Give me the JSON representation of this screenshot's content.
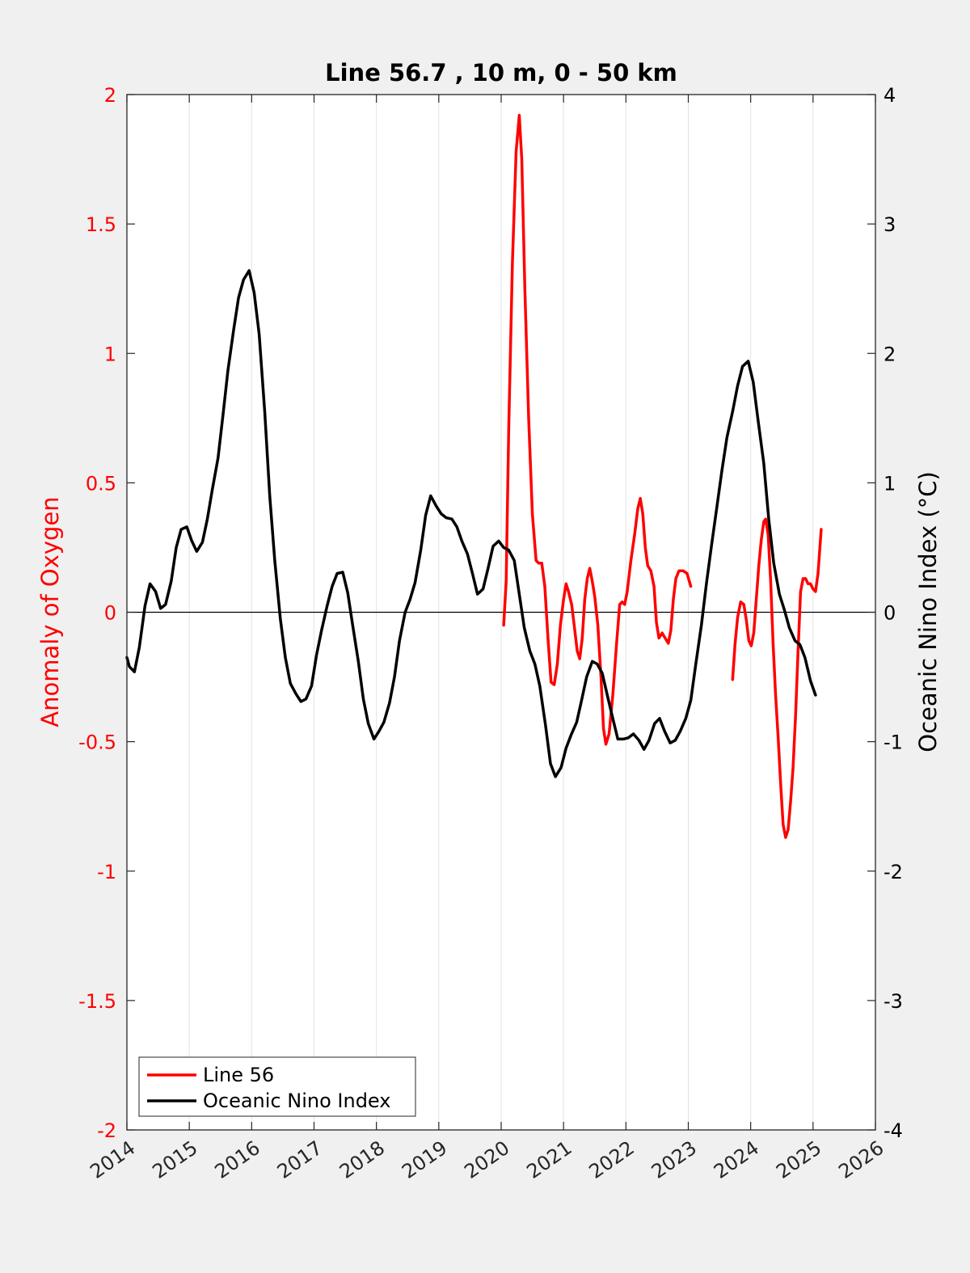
{
  "chart_data": {
    "type": "line",
    "title": "Line 56.7 , 10 m, 0 - 50 km",
    "ylabel_left": "Anomaly of Oxygen",
    "ylabel_right": "Oceanic Nino Index (°C)",
    "xlim": [
      2014,
      2026
    ],
    "ylim_left": [
      -2,
      2
    ],
    "ylim_right": [
      -4,
      4
    ],
    "x_ticks": [
      "2014",
      "2015",
      "2016",
      "2017",
      "2018",
      "2019",
      "2020",
      "2021",
      "2022",
      "2023",
      "2024",
      "2025",
      "2026"
    ],
    "y_ticks_left": [
      "2",
      "1.5",
      "1",
      "0.5",
      "0",
      "-0.5",
      "-1",
      "-1.5",
      "-2"
    ],
    "y_ticks_right": [
      "4",
      "3",
      "2",
      "1",
      "0",
      "-1",
      "-2",
      "-3",
      "-4"
    ],
    "grid": "vertical",
    "legend_position": "bottom-left",
    "series": [
      {
        "name": "Line 56",
        "axis": "left",
        "color": "#ff0000",
        "segments": [
          [
            [
              2020.04,
              -0.05
            ],
            [
              2020.08,
              0.12
            ],
            [
              2020.12,
              0.7
            ],
            [
              2020.18,
              1.35
            ],
            [
              2020.24,
              1.78
            ],
            [
              2020.29,
              1.92
            ],
            [
              2020.33,
              1.75
            ],
            [
              2020.38,
              1.25
            ],
            [
              2020.44,
              0.75
            ],
            [
              2020.5,
              0.38
            ],
            [
              2020.56,
              0.2
            ],
            [
              2020.6,
              0.19
            ],
            [
              2020.65,
              0.19
            ],
            [
              2020.7,
              0.1
            ],
            [
              2020.75,
              -0.1
            ],
            [
              2020.8,
              -0.27
            ],
            [
              2020.85,
              -0.28
            ],
            [
              2020.9,
              -0.2
            ],
            [
              2020.95,
              -0.05
            ],
            [
              2021.0,
              0.05
            ],
            [
              2021.04,
              0.11
            ],
            [
              2021.08,
              0.08
            ],
            [
              2021.13,
              0.03
            ],
            [
              2021.18,
              -0.07
            ],
            [
              2021.22,
              -0.15
            ],
            [
              2021.26,
              -0.18
            ],
            [
              2021.3,
              -0.1
            ],
            [
              2021.34,
              0.05
            ],
            [
              2021.38,
              0.13
            ],
            [
              2021.42,
              0.17
            ],
            [
              2021.46,
              0.12
            ],
            [
              2021.5,
              0.06
            ],
            [
              2021.55,
              -0.05
            ],
            [
              2021.6,
              -0.25
            ],
            [
              2021.64,
              -0.45
            ],
            [
              2021.68,
              -0.51
            ],
            [
              2021.73,
              -0.47
            ],
            [
              2021.79,
              -0.32
            ],
            [
              2021.85,
              -0.12
            ],
            [
              2021.9,
              0.03
            ],
            [
              2021.94,
              0.04
            ],
            [
              2021.98,
              0.03
            ],
            [
              2022.02,
              0.08
            ],
            [
              2022.08,
              0.2
            ],
            [
              2022.14,
              0.3
            ],
            [
              2022.19,
              0.4
            ],
            [
              2022.23,
              0.44
            ],
            [
              2022.27,
              0.38
            ],
            [
              2022.31,
              0.25
            ],
            [
              2022.35,
              0.18
            ],
            [
              2022.4,
              0.16
            ],
            [
              2022.45,
              0.1
            ],
            [
              2022.49,
              -0.04
            ],
            [
              2022.53,
              -0.1
            ],
            [
              2022.58,
              -0.08
            ],
            [
              2022.63,
              -0.1
            ],
            [
              2022.68,
              -0.12
            ],
            [
              2022.72,
              -0.07
            ],
            [
              2022.76,
              0.05
            ],
            [
              2022.8,
              0.13
            ],
            [
              2022.85,
              0.16
            ],
            [
              2022.92,
              0.16
            ],
            [
              2022.98,
              0.15
            ],
            [
              2023.04,
              0.1
            ]
          ],
          [
            [
              2023.71,
              -0.26
            ],
            [
              2023.75,
              -0.12
            ],
            [
              2023.79,
              -0.02
            ],
            [
              2023.84,
              0.04
            ],
            [
              2023.89,
              0.03
            ],
            [
              2023.93,
              -0.03
            ],
            [
              2023.97,
              -0.11
            ],
            [
              2024.01,
              -0.13
            ],
            [
              2024.05,
              -0.08
            ],
            [
              2024.09,
              0.05
            ],
            [
              2024.13,
              0.18
            ],
            [
              2024.17,
              0.28
            ],
            [
              2024.21,
              0.35
            ],
            [
              2024.24,
              0.36
            ],
            [
              2024.28,
              0.3
            ],
            [
              2024.32,
              0.12
            ],
            [
              2024.36,
              -0.12
            ],
            [
              2024.4,
              -0.32
            ],
            [
              2024.44,
              -0.48
            ],
            [
              2024.48,
              -0.66
            ],
            [
              2024.52,
              -0.82
            ],
            [
              2024.56,
              -0.87
            ],
            [
              2024.6,
              -0.84
            ],
            [
              2024.64,
              -0.73
            ],
            [
              2024.68,
              -0.6
            ],
            [
              2024.72,
              -0.4
            ],
            [
              2024.76,
              -0.15
            ],
            [
              2024.8,
              0.08
            ],
            [
              2024.84,
              0.13
            ],
            [
              2024.88,
              0.13
            ],
            [
              2024.92,
              0.11
            ],
            [
              2024.96,
              0.11
            ],
            [
              2025.0,
              0.09
            ],
            [
              2025.04,
              0.08
            ],
            [
              2025.08,
              0.15
            ],
            [
              2025.13,
              0.32
            ]
          ]
        ]
      },
      {
        "name": "Oceanic Nino Index",
        "axis": "right",
        "color": "#000000",
        "segments": [
          [
            [
              2014.0,
              -0.35
            ],
            [
              2014.04,
              -0.42
            ],
            [
              2014.12,
              -0.46
            ],
            [
              2014.2,
              -0.27
            ],
            [
              2014.29,
              0.05
            ],
            [
              2014.37,
              0.22
            ],
            [
              2014.46,
              0.16
            ],
            [
              2014.54,
              0.03
            ],
            [
              2014.62,
              0.06
            ],
            [
              2014.71,
              0.24
            ],
            [
              2014.79,
              0.5
            ],
            [
              2014.87,
              0.64
            ],
            [
              2014.96,
              0.66
            ],
            [
              2015.04,
              0.55
            ],
            [
              2015.12,
              0.47
            ],
            [
              2015.21,
              0.54
            ],
            [
              2015.29,
              0.72
            ],
            [
              2015.37,
              0.95
            ],
            [
              2015.46,
              1.19
            ],
            [
              2015.54,
              1.52
            ],
            [
              2015.62,
              1.87
            ],
            [
              2015.71,
              2.18
            ],
            [
              2015.79,
              2.43
            ],
            [
              2015.87,
              2.57
            ],
            [
              2015.96,
              2.64
            ],
            [
              2016.04,
              2.47
            ],
            [
              2016.12,
              2.15
            ],
            [
              2016.21,
              1.55
            ],
            [
              2016.29,
              0.9
            ],
            [
              2016.37,
              0.4
            ],
            [
              2016.46,
              -0.05
            ],
            [
              2016.54,
              -0.35
            ],
            [
              2016.62,
              -0.55
            ],
            [
              2016.71,
              -0.63
            ],
            [
              2016.79,
              -0.69
            ],
            [
              2016.87,
              -0.67
            ],
            [
              2016.96,
              -0.57
            ],
            [
              2017.04,
              -0.33
            ],
            [
              2017.12,
              -0.14
            ],
            [
              2017.21,
              0.05
            ],
            [
              2017.29,
              0.2
            ],
            [
              2017.37,
              0.3
            ],
            [
              2017.46,
              0.31
            ],
            [
              2017.54,
              0.15
            ],
            [
              2017.62,
              -0.1
            ],
            [
              2017.71,
              -0.38
            ],
            [
              2017.79,
              -0.67
            ],
            [
              2017.87,
              -0.86
            ],
            [
              2017.96,
              -0.98
            ],
            [
              2018.04,
              -0.92
            ],
            [
              2018.12,
              -0.85
            ],
            [
              2018.21,
              -0.7
            ],
            [
              2018.29,
              -0.5
            ],
            [
              2018.37,
              -0.22
            ],
            [
              2018.46,
              0.0
            ],
            [
              2018.54,
              0.1
            ],
            [
              2018.62,
              0.23
            ],
            [
              2018.71,
              0.48
            ],
            [
              2018.79,
              0.75
            ],
            [
              2018.87,
              0.9
            ],
            [
              2018.96,
              0.82
            ],
            [
              2019.04,
              0.76
            ],
            [
              2019.12,
              0.73
            ],
            [
              2019.21,
              0.72
            ],
            [
              2019.29,
              0.66
            ],
            [
              2019.37,
              0.55
            ],
            [
              2019.46,
              0.45
            ],
            [
              2019.54,
              0.3
            ],
            [
              2019.62,
              0.14
            ],
            [
              2019.71,
              0.18
            ],
            [
              2019.79,
              0.34
            ],
            [
              2019.87,
              0.51
            ],
            [
              2019.96,
              0.55
            ],
            [
              2020.04,
              0.5
            ],
            [
              2020.12,
              0.48
            ],
            [
              2020.21,
              0.4
            ],
            [
              2020.29,
              0.14
            ],
            [
              2020.37,
              -0.12
            ],
            [
              2020.46,
              -0.3
            ],
            [
              2020.54,
              -0.4
            ],
            [
              2020.62,
              -0.57
            ],
            [
              2020.71,
              -0.87
            ],
            [
              2020.79,
              -1.17
            ],
            [
              2020.87,
              -1.27
            ],
            [
              2020.96,
              -1.2
            ],
            [
              2021.04,
              -1.05
            ],
            [
              2021.12,
              -0.95
            ],
            [
              2021.21,
              -0.85
            ],
            [
              2021.29,
              -0.68
            ],
            [
              2021.37,
              -0.5
            ],
            [
              2021.46,
              -0.38
            ],
            [
              2021.54,
              -0.4
            ],
            [
              2021.62,
              -0.47
            ],
            [
              2021.71,
              -0.66
            ],
            [
              2021.79,
              -0.82
            ],
            [
              2021.87,
              -0.98
            ],
            [
              2021.96,
              -0.98
            ],
            [
              2022.04,
              -0.97
            ],
            [
              2022.12,
              -0.94
            ],
            [
              2022.21,
              -0.99
            ],
            [
              2022.29,
              -1.06
            ],
            [
              2022.37,
              -0.99
            ],
            [
              2022.46,
              -0.86
            ],
            [
              2022.54,
              -0.82
            ],
            [
              2022.62,
              -0.92
            ],
            [
              2022.71,
              -1.01
            ],
            [
              2022.79,
              -0.99
            ],
            [
              2022.87,
              -0.92
            ],
            [
              2022.96,
              -0.82
            ],
            [
              2023.04,
              -0.68
            ],
            [
              2023.12,
              -0.4
            ],
            [
              2023.21,
              -0.1
            ],
            [
              2023.29,
              0.22
            ],
            [
              2023.37,
              0.51
            ],
            [
              2023.46,
              0.82
            ],
            [
              2023.54,
              1.1
            ],
            [
              2023.62,
              1.35
            ],
            [
              2023.71,
              1.55
            ],
            [
              2023.79,
              1.75
            ],
            [
              2023.87,
              1.9
            ],
            [
              2023.96,
              1.94
            ],
            [
              2024.04,
              1.78
            ],
            [
              2024.12,
              1.48
            ],
            [
              2024.21,
              1.15
            ],
            [
              2024.29,
              0.72
            ],
            [
              2024.37,
              0.38
            ],
            [
              2024.46,
              0.14
            ],
            [
              2024.54,
              0.02
            ],
            [
              2024.62,
              -0.12
            ],
            [
              2024.71,
              -0.22
            ],
            [
              2024.79,
              -0.25
            ],
            [
              2024.87,
              -0.35
            ],
            [
              2024.96,
              -0.53
            ],
            [
              2025.04,
              -0.64
            ]
          ]
        ]
      }
    ]
  }
}
